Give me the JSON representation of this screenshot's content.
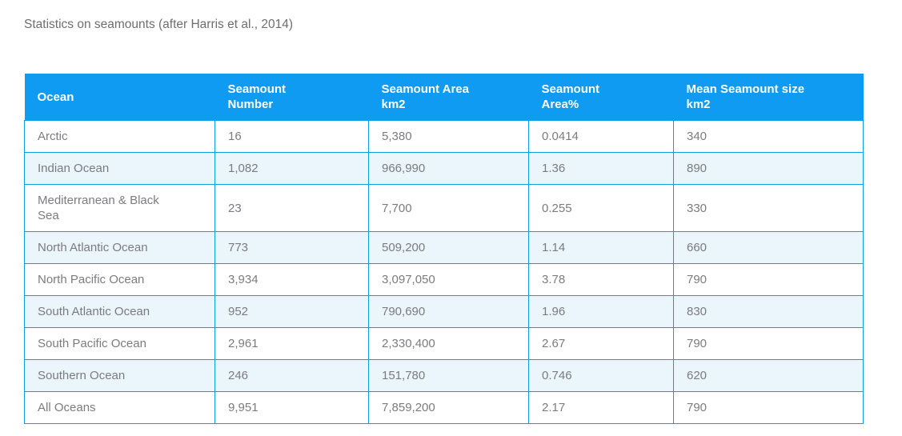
{
  "page": {
    "title": "Statistics on seamounts (after Harris et al., 2014)"
  },
  "table": {
    "columns": [
      {
        "lines": [
          "Ocean"
        ]
      },
      {
        "lines": [
          "Seamount",
          "Number"
        ]
      },
      {
        "lines": [
          "Seamount Area",
          "km2"
        ]
      },
      {
        "lines": [
          "Seamount",
          "Area%"
        ]
      },
      {
        "lines": [
          "Mean Seamount size",
          "km2"
        ]
      }
    ],
    "rows": [
      [
        "Arctic",
        "16",
        "5,380",
        "0.0414",
        "340"
      ],
      [
        "Indian Ocean",
        "1,082",
        "966,990",
        "1.36",
        "890"
      ],
      [
        "Mediterranean & Black Sea",
        "23",
        "7,700",
        "0.255",
        "330"
      ],
      [
        "North Atlantic Ocean",
        "773",
        "509,200",
        "1.14",
        "660"
      ],
      [
        "North Pacific Ocean",
        "3,934",
        "3,097,050",
        "3.78",
        "790"
      ],
      [
        "South Atlantic Ocean",
        "952",
        "790,690",
        "1.96",
        "830"
      ],
      [
        "South Pacific Ocean",
        "2,961",
        "2,330,400",
        "2.67",
        "790"
      ],
      [
        "Southern Ocean",
        "246",
        "151,780",
        "0.746",
        "620"
      ],
      [
        "All Oceans",
        "9,951",
        "7,859,200",
        "2.17",
        "790"
      ]
    ]
  },
  "colors": {
    "header_bg": "#0F9BF1",
    "header_text": "#FFFFFF",
    "border": "#0C9DE8",
    "row_bg": "#FFFFFF",
    "row_alt_bg": "#EAF5FC",
    "cell_text": "#7B7C7F",
    "title_text": "#6D6E71"
  }
}
